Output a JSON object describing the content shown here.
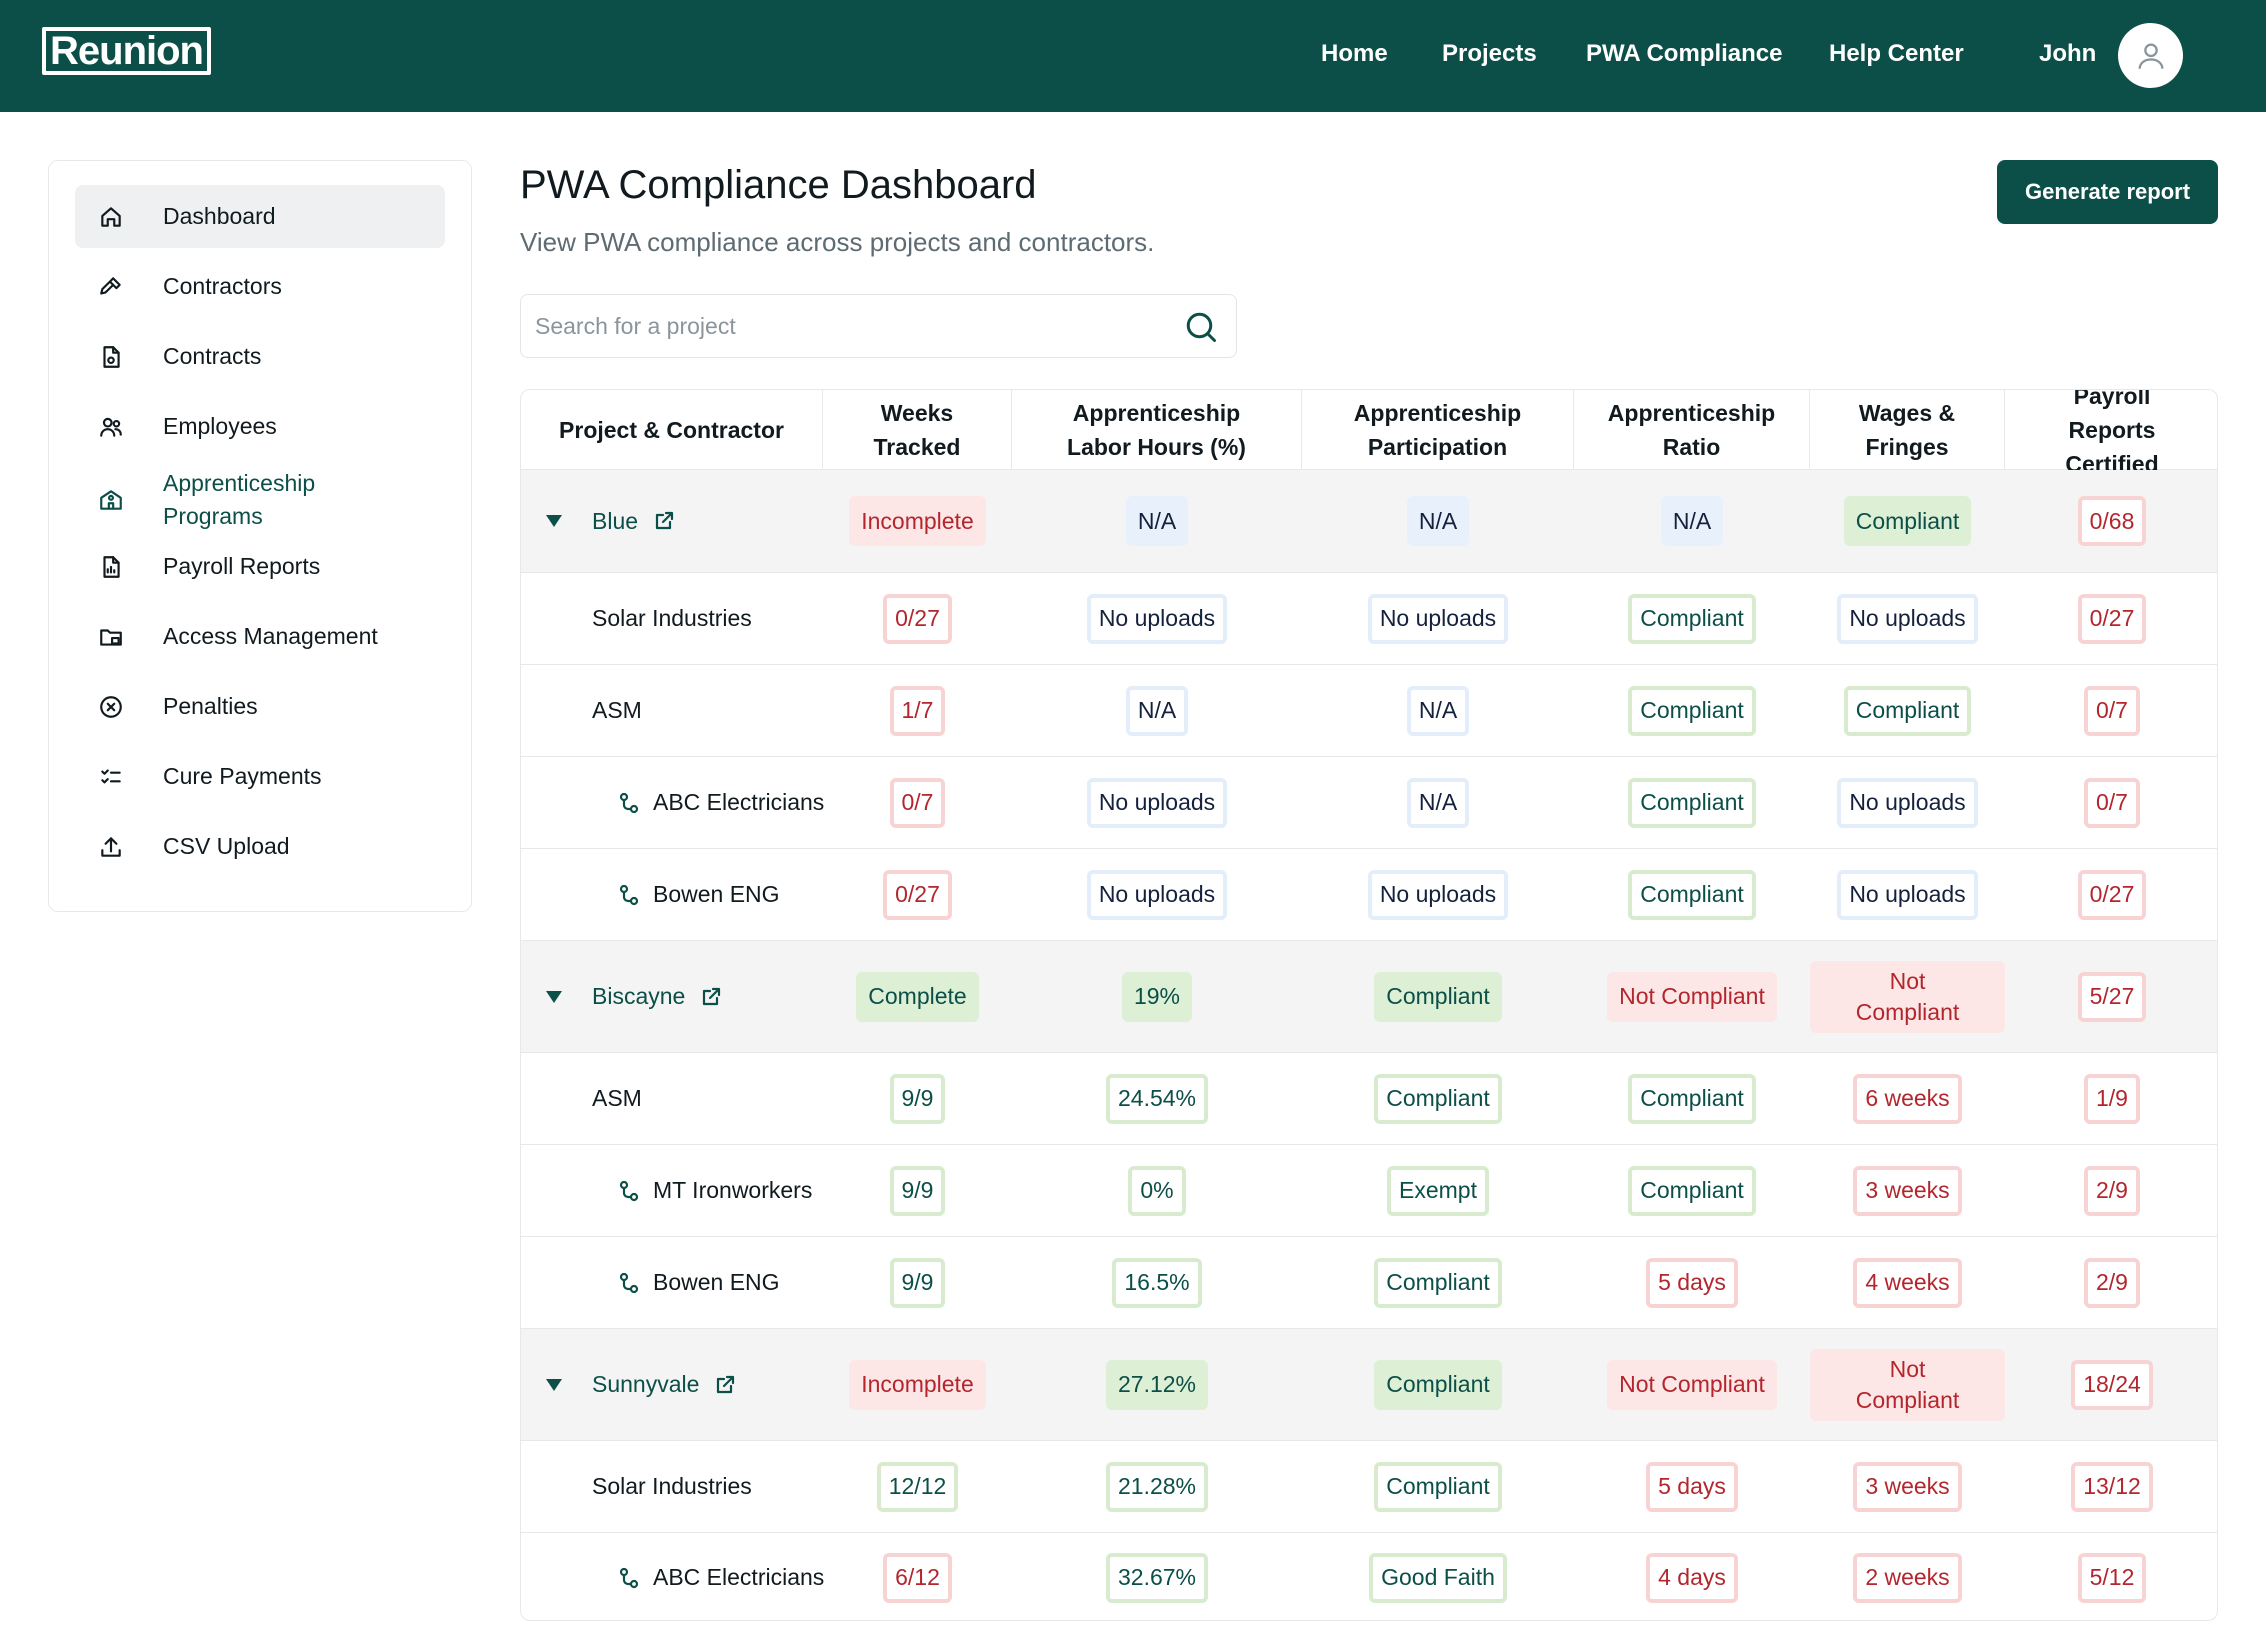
{
  "header": {
    "logo": "Reunion",
    "nav": [
      "Home",
      "Projects",
      "PWA Compliance",
      "Help Center"
    ],
    "user_name": "John"
  },
  "sidebar": {
    "items": [
      {
        "label": "Dashboard",
        "icon": "home-icon",
        "active": true
      },
      {
        "label": "Contractors",
        "icon": "hammer-icon"
      },
      {
        "label": "Contracts",
        "icon": "contract-file-icon"
      },
      {
        "label": "Employees",
        "icon": "users-icon"
      },
      {
        "label": "Apprenticeship Programs",
        "icon": "school-icon",
        "accent": true
      },
      {
        "label": "Payroll Reports",
        "icon": "report-file-icon"
      },
      {
        "label": "Access Management",
        "icon": "folder-lock-icon"
      },
      {
        "label": "Penalties",
        "icon": "circle-x-icon"
      },
      {
        "label": "Cure Payments",
        "icon": "checklist-icon"
      },
      {
        "label": "CSV Upload",
        "icon": "upload-icon"
      }
    ]
  },
  "main": {
    "title": "PWA Compliance Dashboard",
    "subtitle": "View PWA compliance across projects and contractors.",
    "generate_button": "Generate report",
    "search_placeholder": "Search for a project"
  },
  "table": {
    "columns": [
      "Project & Contractor",
      "Weeks Tracked",
      "Apprenticeship Labor Hours (%)",
      "Apprenticeship Participation",
      "Apprenticeship Ratio",
      "Wages & Fringes",
      "Payroll Reports Certified"
    ],
    "rows": [
      {
        "type": "group",
        "name": "Blue",
        "cells": [
          {
            "t": "Incomplete",
            "s": "b-red"
          },
          {
            "t": "N/A",
            "s": "b-blue"
          },
          {
            "t": "N/A",
            "s": "b-blue"
          },
          {
            "t": "N/A",
            "s": "b-blue"
          },
          {
            "t": "Compliant",
            "s": "b-green"
          },
          {
            "t": "0/68",
            "s": "o-red"
          }
        ]
      },
      {
        "type": "contractor",
        "name": "Solar Industries",
        "cells": [
          {
            "t": "0/27",
            "s": "o-red"
          },
          {
            "t": "No uploads",
            "s": "o-blue"
          },
          {
            "t": "No uploads",
            "s": "o-blue"
          },
          {
            "t": "Compliant",
            "s": "o-green"
          },
          {
            "t": "No uploads",
            "s": "o-blue"
          },
          {
            "t": "0/27",
            "s": "o-red"
          }
        ]
      },
      {
        "type": "contractor",
        "name": "ASM",
        "cells": [
          {
            "t": "1/7",
            "s": "o-red"
          },
          {
            "t": "N/A",
            "s": "o-blue"
          },
          {
            "t": "N/A",
            "s": "o-blue"
          },
          {
            "t": "Compliant",
            "s": "o-green"
          },
          {
            "t": "Compliant",
            "s": "o-green"
          },
          {
            "t": "0/7",
            "s": "o-red"
          }
        ]
      },
      {
        "type": "sub",
        "name": "ABC Electricians",
        "cells": [
          {
            "t": "0/7",
            "s": "o-red"
          },
          {
            "t": "No uploads",
            "s": "o-blue"
          },
          {
            "t": "N/A",
            "s": "o-blue"
          },
          {
            "t": "Compliant",
            "s": "o-green"
          },
          {
            "t": "No uploads",
            "s": "o-blue"
          },
          {
            "t": "0/7",
            "s": "o-red"
          }
        ]
      },
      {
        "type": "sub",
        "name": "Bowen ENG",
        "cells": [
          {
            "t": "0/27",
            "s": "o-red"
          },
          {
            "t": "No uploads",
            "s": "o-blue"
          },
          {
            "t": "No uploads",
            "s": "o-blue"
          },
          {
            "t": "Compliant",
            "s": "o-green"
          },
          {
            "t": "No uploads",
            "s": "o-blue"
          },
          {
            "t": "0/27",
            "s": "o-red"
          }
        ]
      },
      {
        "type": "group",
        "name": "Biscayne",
        "cells": [
          {
            "t": "Complete",
            "s": "b-green"
          },
          {
            "t": "19%",
            "s": "b-green"
          },
          {
            "t": "Compliant",
            "s": "b-green"
          },
          {
            "t": "Not Compliant",
            "s": "b-red"
          },
          {
            "t": "Not Compliant",
            "s": "b-red two"
          },
          {
            "t": "5/27",
            "s": "o-red"
          }
        ]
      },
      {
        "type": "contractor",
        "name": "ASM",
        "cells": [
          {
            "t": "9/9",
            "s": "o-green"
          },
          {
            "t": "24.54%",
            "s": "o-green"
          },
          {
            "t": "Compliant",
            "s": "o-green"
          },
          {
            "t": "Compliant",
            "s": "o-green"
          },
          {
            "t": "6 weeks",
            "s": "o-red"
          },
          {
            "t": "1/9",
            "s": "o-red"
          }
        ]
      },
      {
        "type": "sub",
        "name": "MT Ironworkers",
        "cells": [
          {
            "t": "9/9",
            "s": "o-green"
          },
          {
            "t": "0%",
            "s": "o-green"
          },
          {
            "t": "Exempt",
            "s": "o-green"
          },
          {
            "t": "Compliant",
            "s": "o-green"
          },
          {
            "t": "3 weeks",
            "s": "o-red"
          },
          {
            "t": "2/9",
            "s": "o-red"
          }
        ]
      },
      {
        "type": "sub",
        "name": "Bowen ENG",
        "cells": [
          {
            "t": "9/9",
            "s": "o-green"
          },
          {
            "t": "16.5%",
            "s": "o-green"
          },
          {
            "t": "Compliant",
            "s": "o-green"
          },
          {
            "t": "5 days",
            "s": "o-red"
          },
          {
            "t": "4 weeks",
            "s": "o-red"
          },
          {
            "t": "2/9",
            "s": "o-red"
          }
        ]
      },
      {
        "type": "group",
        "name": "Sunnyvale",
        "cells": [
          {
            "t": "Incomplete",
            "s": "b-red"
          },
          {
            "t": "27.12%",
            "s": "b-green"
          },
          {
            "t": "Compliant",
            "s": "b-green"
          },
          {
            "t": "Not Compliant",
            "s": "b-red"
          },
          {
            "t": "Not Compliant",
            "s": "b-red two"
          },
          {
            "t": "18/24",
            "s": "o-red"
          }
        ]
      },
      {
        "type": "contractor",
        "name": "Solar Industries",
        "cells": [
          {
            "t": "12/12",
            "s": "o-green"
          },
          {
            "t": "21.28%",
            "s": "o-green"
          },
          {
            "t": "Compliant",
            "s": "o-green"
          },
          {
            "t": "5 days",
            "s": "o-red"
          },
          {
            "t": "3 weeks",
            "s": "o-red"
          },
          {
            "t": "13/12",
            "s": "o-red"
          }
        ]
      },
      {
        "type": "sub",
        "name": "ABC Electricians",
        "cells": [
          {
            "t": "6/12",
            "s": "o-red"
          },
          {
            "t": "32.67%",
            "s": "o-green"
          },
          {
            "t": "Good Faith",
            "s": "o-green"
          },
          {
            "t": "4 days",
            "s": "o-red"
          },
          {
            "t": "2 weeks",
            "s": "o-red"
          },
          {
            "t": "5/12",
            "s": "o-red"
          }
        ]
      }
    ]
  }
}
